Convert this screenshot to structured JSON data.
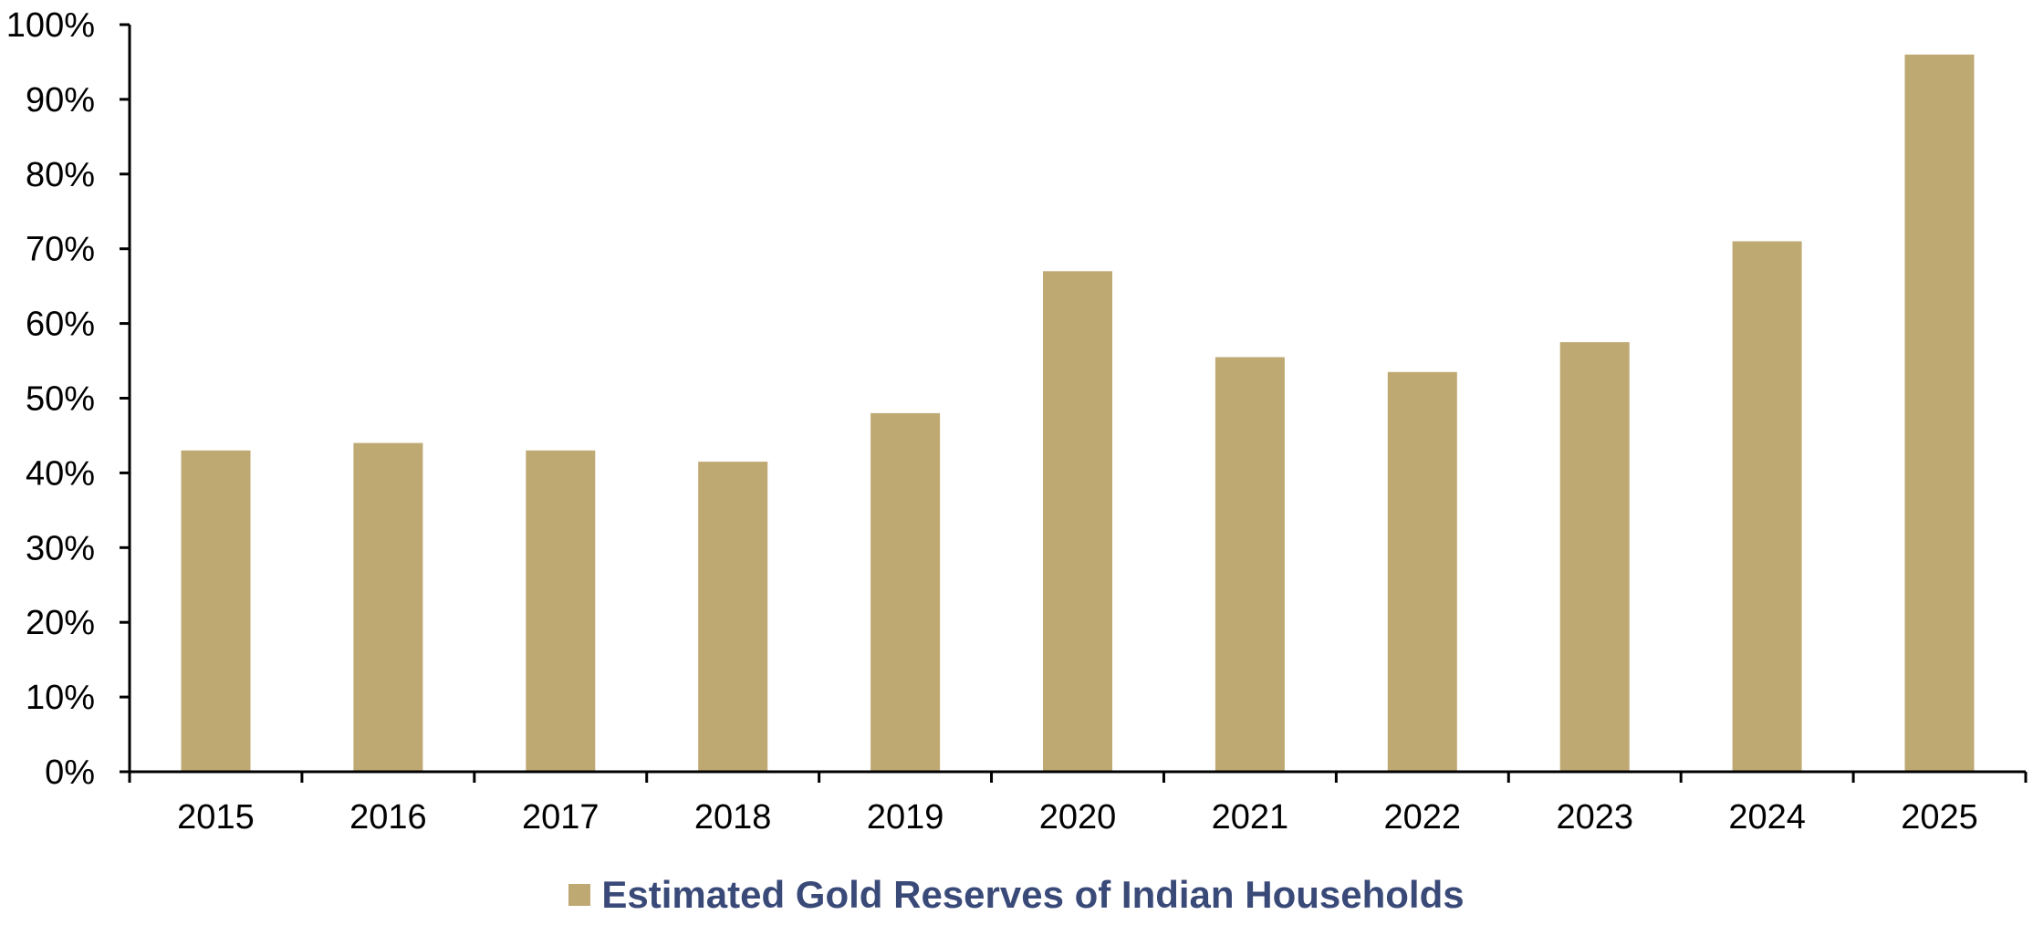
{
  "chart_data": {
    "type": "bar",
    "categories": [
      "2015",
      "2016",
      "2017",
      "2018",
      "2019",
      "2020",
      "2021",
      "2022",
      "2023",
      "2024",
      "2025"
    ],
    "series": [
      {
        "name": "Estimated Gold Reserves of Indian Households",
        "values": [
          43,
          44,
          43,
          41.5,
          48,
          67,
          55.5,
          53.5,
          57.5,
          71,
          96
        ]
      }
    ],
    "ylim": [
      0,
      100
    ],
    "yticks": [
      0,
      10,
      20,
      30,
      40,
      50,
      60,
      70,
      80,
      90,
      100
    ],
    "ytick_labels": [
      "0%",
      "10%",
      "20%",
      "30%",
      "40%",
      "50%",
      "60%",
      "70%",
      "80%",
      "90%",
      "100%"
    ],
    "title": "",
    "xlabel": "",
    "ylabel": "",
    "grid": false,
    "legend_position": "bottom-center"
  },
  "colors": {
    "bar": "#bfa973",
    "axis": "#000000",
    "legend_text": "#3a4a78"
  }
}
